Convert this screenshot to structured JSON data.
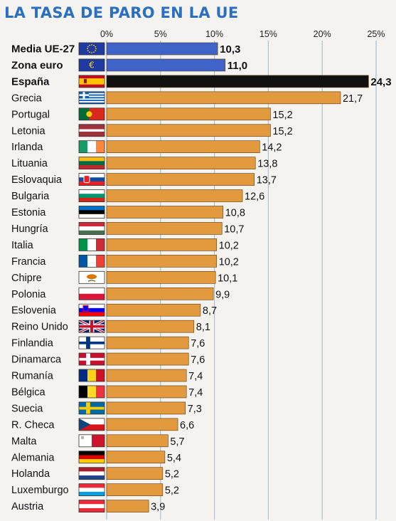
{
  "title": "LA TASA DE PARO EN LA UE",
  "colors": {
    "background": "#f4f3ef",
    "title": "#2a6fc0",
    "grid": "#9fc3e4",
    "bar_default": "#e39a3e",
    "bar_eu": "#3f63c8",
    "bar_highlight": "#111111"
  },
  "chart_data": {
    "type": "bar",
    "orientation": "horizontal",
    "title": "LA TASA DE PARO EN LA UE",
    "xlim": [
      0,
      25
    ],
    "ticks": [
      "0%",
      "5%",
      "10%",
      "15%",
      "20%",
      "25%"
    ],
    "tick_values": [
      0,
      5,
      10,
      15,
      20,
      25
    ],
    "grid": true,
    "categories": [
      "Media UE-27",
      "Zona euro",
      "España",
      "Grecia",
      "Portugal",
      "Letonia",
      "Irlanda",
      "Lituania",
      "Eslovaquia",
      "Bulgaria",
      "Estonia",
      "Hungría",
      "Italia",
      "Francia",
      "Chipre",
      "Polonia",
      "Eslovenia",
      "Reino Unido",
      "Finlandia",
      "Dinamarca",
      "Rumanía",
      "Bélgica",
      "Suecia",
      "R. Checa",
      "Malta",
      "Alemania",
      "Holanda",
      "Luxemburgo",
      "Austria"
    ],
    "values": [
      10.3,
      11.0,
      24.3,
      21.7,
      15.2,
      15.2,
      14.2,
      13.8,
      13.7,
      12.6,
      10.8,
      10.7,
      10.2,
      10.2,
      10.1,
      9.9,
      8.7,
      8.1,
      7.6,
      7.6,
      7.4,
      7.4,
      7.3,
      6.6,
      5.7,
      5.4,
      5.2,
      5.2,
      3.9
    ],
    "value_labels": [
      "10,3",
      "11,0",
      "24,3",
      "21,7",
      "15,2",
      "15,2",
      "14,2",
      "13,8",
      "13,7",
      "12,6",
      "10,8",
      "10,7",
      "10,2",
      "10,2",
      "10,1",
      "9,9",
      "8,7",
      "8,1",
      "7,6",
      "7,6",
      "7,4",
      "7,4",
      "7,3",
      "6,6",
      "5,7",
      "5,4",
      "5,2",
      "5,2",
      "3,9"
    ],
    "bold_categories": [
      "Media UE-27",
      "Zona euro",
      "España"
    ],
    "bar_color_groups": {
      "eu": [
        "Media UE-27",
        "Zona euro"
      ],
      "highlight": [
        "España"
      ],
      "default": "all other countries"
    }
  },
  "flags": [
    "eu-flag-icon",
    "euro-flag-icon",
    "spain-flag-icon",
    "greece-flag-icon",
    "portugal-flag-icon",
    "latvia-flag-icon",
    "ireland-flag-icon",
    "lithuania-flag-icon",
    "slovakia-flag-icon",
    "bulgaria-flag-icon",
    "estonia-flag-icon",
    "hungary-flag-icon",
    "italy-flag-icon",
    "france-flag-icon",
    "cyprus-flag-icon",
    "poland-flag-icon",
    "slovenia-flag-icon",
    "uk-flag-icon",
    "finland-flag-icon",
    "denmark-flag-icon",
    "romania-flag-icon",
    "belgium-flag-icon",
    "sweden-flag-icon",
    "czech-flag-icon",
    "malta-flag-icon",
    "germany-flag-icon",
    "netherlands-flag-icon",
    "luxembourg-flag-icon",
    "austria-flag-icon"
  ]
}
